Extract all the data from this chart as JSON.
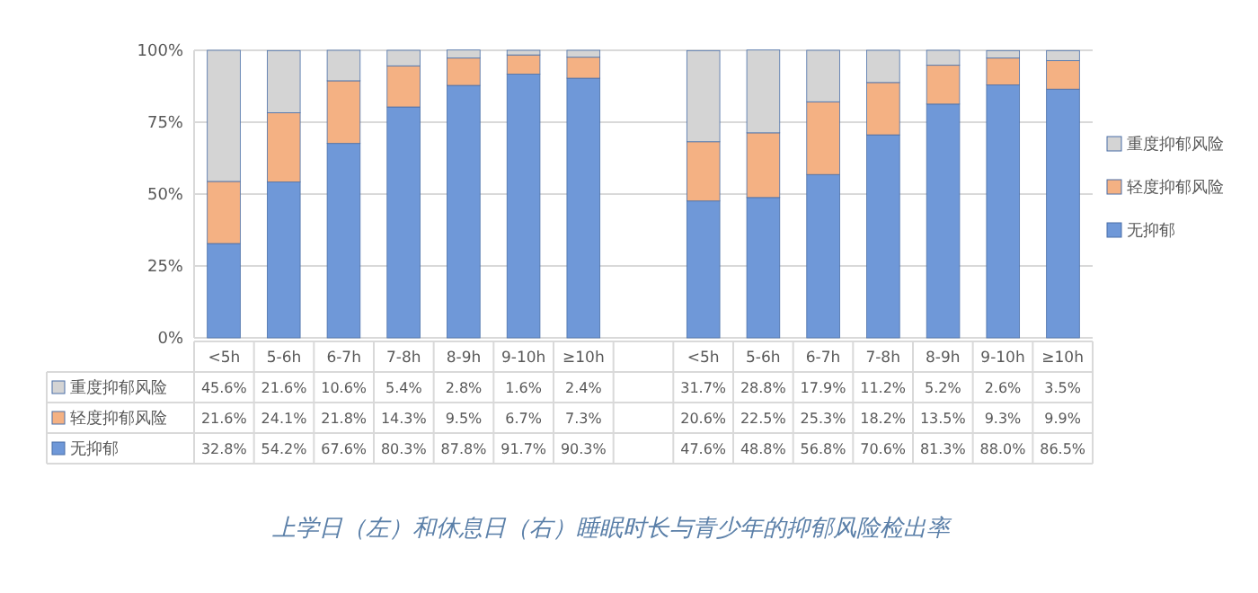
{
  "chart_data": {
    "type": "bar",
    "stacked": true,
    "categories": [
      "<5h",
      "5-6h",
      "6-7h",
      "7-8h",
      "8-9h",
      "9-10h",
      "≥10h",
      null,
      "<5h",
      "5-6h",
      "6-7h",
      "7-8h",
      "8-9h",
      "9-10h",
      "≥10h"
    ],
    "series": [
      {
        "name": "无抑郁",
        "color": "#6f98d8",
        "values": [
          32.8,
          54.2,
          67.6,
          80.3,
          87.8,
          91.7,
          90.3,
          null,
          47.6,
          48.8,
          56.8,
          70.6,
          81.3,
          88.0,
          86.5
        ],
        "value_labels": [
          "32.8%",
          "54.2%",
          "67.6%",
          "80.3%",
          "87.8%",
          "91.7%",
          "90.3%",
          null,
          "47.6%",
          "48.8%",
          "56.8%",
          "70.6%",
          "81.3%",
          "88.0%",
          "86.5%"
        ]
      },
      {
        "name": "轻度抑郁风险",
        "color": "#f4b183",
        "values": [
          21.6,
          24.1,
          21.8,
          14.3,
          9.5,
          6.7,
          7.3,
          null,
          20.6,
          22.5,
          25.3,
          18.2,
          13.5,
          9.3,
          9.9
        ],
        "value_labels": [
          "21.6%",
          "24.1%",
          "21.8%",
          "14.3%",
          "9.5%",
          "6.7%",
          "7.3%",
          null,
          "20.6%",
          "22.5%",
          "25.3%",
          "18.2%",
          "13.5%",
          "9.3%",
          "9.9%"
        ]
      },
      {
        "name": "重度抑郁风险",
        "color": "#d4d4d4",
        "values": [
          45.6,
          21.6,
          10.6,
          5.4,
          2.8,
          1.6,
          2.4,
          null,
          31.7,
          28.8,
          17.9,
          11.2,
          5.2,
          2.6,
          3.5
        ],
        "value_labels": [
          "45.6%",
          "21.6%",
          "10.6%",
          "5.4%",
          "2.8%",
          "1.6%",
          "2.4%",
          null,
          "31.7%",
          "28.8%",
          "17.9%",
          "11.2%",
          "5.2%",
          "2.6%",
          "3.5%"
        ]
      }
    ],
    "ylim": [
      0,
      100
    ],
    "yticks": [
      {
        "value": 0,
        "label": "0%"
      },
      {
        "value": 25,
        "label": "25%"
      },
      {
        "value": 50,
        "label": "50%"
      },
      {
        "value": 75,
        "label": "75%"
      },
      {
        "value": 100,
        "label": "100%"
      }
    ],
    "grid": "y",
    "legend": "right",
    "annotations": [
      "上学日（左）和休息日（右）睡眠时长与青少年的抑郁风险检出率"
    ]
  }
}
